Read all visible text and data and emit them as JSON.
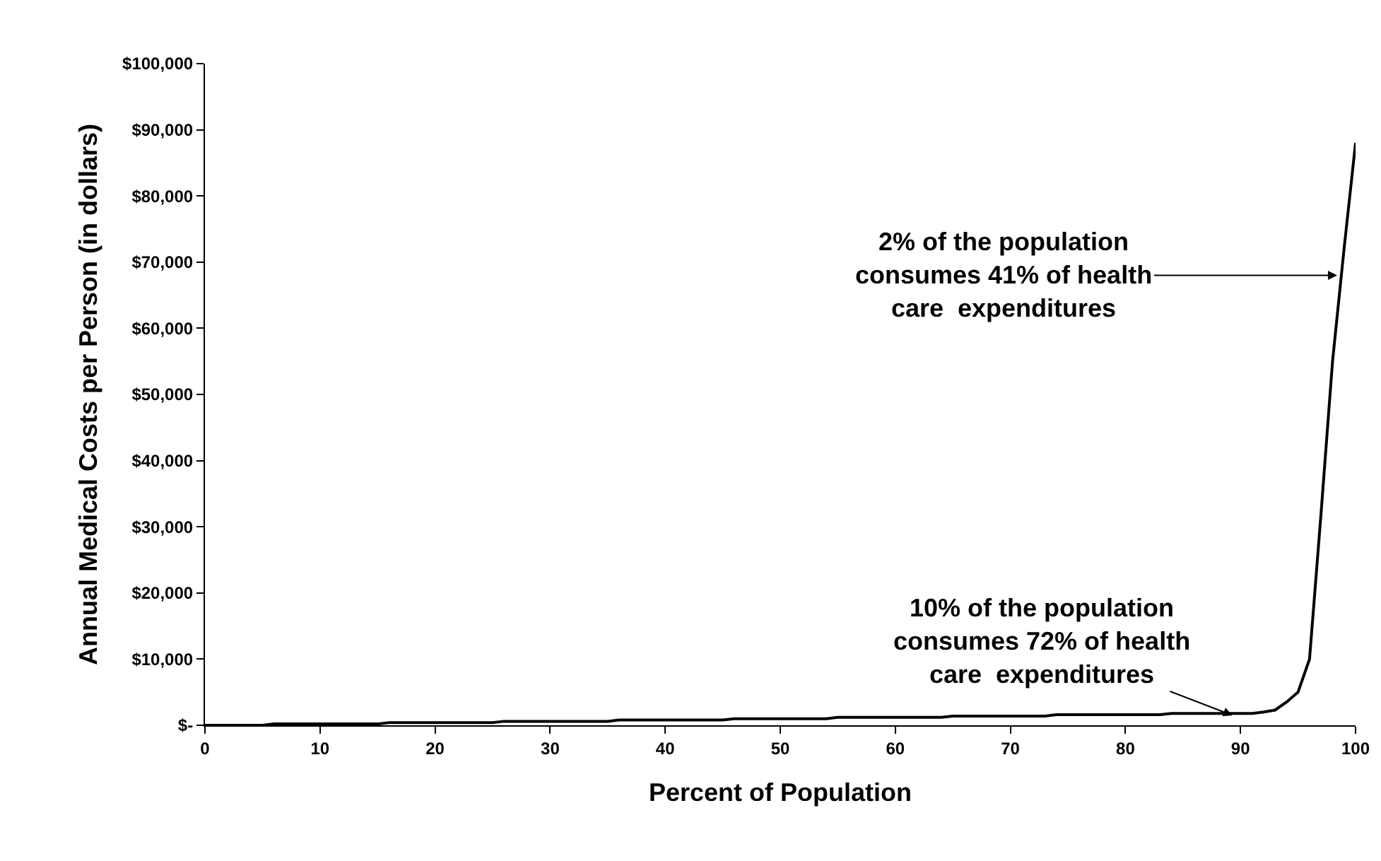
{
  "chart_data": {
    "type": "line",
    "xlabel": "Percent of Population",
    "ylabel": "Annual Medical Costs per Person (in dollars)",
    "x": [
      0,
      5,
      6,
      15,
      16,
      25,
      26,
      35,
      36,
      45,
      46,
      54,
      55,
      64,
      65,
      73,
      74,
      83,
      84,
      91,
      92,
      93,
      94,
      95,
      96,
      97,
      98,
      99,
      100
    ],
    "series": [
      {
        "color": "#000000",
        "values": [
          0,
          0,
          200,
          200,
          400,
          400,
          600,
          600,
          800,
          800,
          1000,
          1000,
          1200,
          1200,
          1400,
          1400,
          1600,
          1600,
          1800,
          1800,
          2000,
          2300,
          3500,
          5000,
          10000,
          32000,
          55000,
          72000,
          88000
        ]
      }
    ],
    "xlim": [
      0,
      100
    ],
    "xticks": [
      0,
      10,
      20,
      30,
      40,
      50,
      60,
      70,
      80,
      90,
      100
    ],
    "ylim": [
      0,
      100000
    ],
    "yticks": [
      {
        "value": 0,
        "label": "$-"
      },
      {
        "value": 10000,
        "label": "$10,000"
      },
      {
        "value": 20000,
        "label": "$20,000"
      },
      {
        "value": 30000,
        "label": "$30,000"
      },
      {
        "value": 40000,
        "label": "$40,000"
      },
      {
        "value": 50000,
        "label": "$50,000"
      },
      {
        "value": 60000,
        "label": "$60,000"
      },
      {
        "value": 70000,
        "label": "$70,000"
      },
      {
        "value": 80000,
        "label": "$80,000"
      },
      {
        "value": 90000,
        "label": "$90,000"
      },
      {
        "value": 100000,
        "label": "$100,000"
      }
    ],
    "grid": false,
    "marker": "none",
    "line_style": "solid",
    "annotations": [
      {
        "text": "2% of the population\nconsumes 41% of health\ncare  expenditures",
        "x": 98.4,
        "y": 68000
      },
      {
        "text": "10% of the population\nconsumes 72% of health\ncare  expenditures",
        "x": 89.3,
        "y": 1500
      }
    ]
  }
}
